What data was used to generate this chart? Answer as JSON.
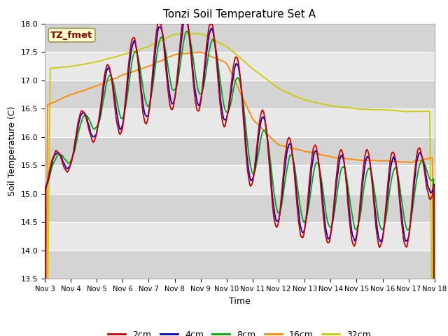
{
  "title": "Tonzi Soil Temperature Set A",
  "xlabel": "Time",
  "ylabel": "Soil Temperature (C)",
  "ylim": [
    13.5,
    18.0
  ],
  "yticks": [
    13.5,
    14.0,
    14.5,
    15.0,
    15.5,
    16.0,
    16.5,
    17.0,
    17.5,
    18.0
  ],
  "xtick_labels": [
    "Nov 3",
    "Nov 4",
    "Nov 5",
    "Nov 6",
    "Nov 7",
    "Nov 8",
    "Nov 9",
    "Nov 10",
    "Nov 11",
    "Nov 12",
    "Nov 13",
    "Nov 14",
    "Nov 15",
    "Nov 16",
    "Nov 17",
    "Nov 18"
  ],
  "colors": {
    "2cm": "#cc0000",
    "4cm": "#0000cc",
    "8cm": "#00aa00",
    "16cm": "#ff8800",
    "32cm": "#cccc00"
  },
  "legend_label": "TZ_fmet",
  "background_fig": "#ffffff",
  "n_points": 720,
  "band_colors": [
    "#d4d4d4",
    "#e8e8e8"
  ]
}
